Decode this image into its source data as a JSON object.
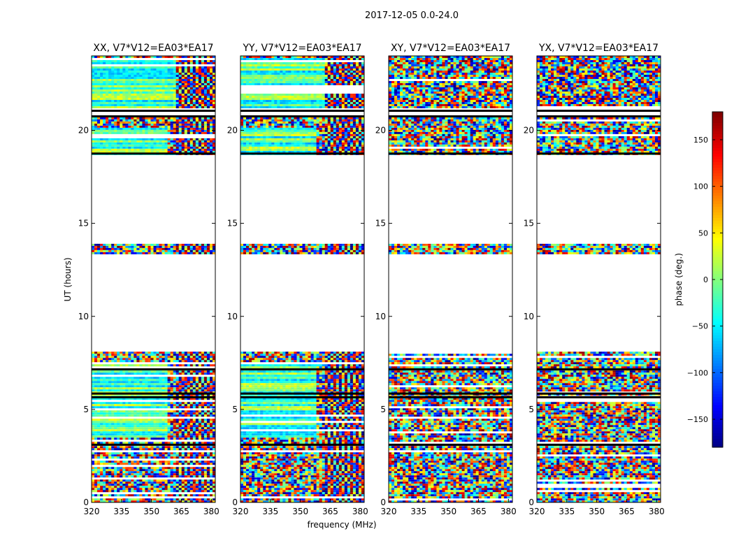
{
  "figure": {
    "suptitle": "2017-12-05 0.0-24.0",
    "xlabel": "frequency (MHz)",
    "ylabel": "UT (hours)",
    "colorbar_label": "phase (deg.)"
  },
  "chart_data": {
    "type": "heatmap",
    "title": "2017-12-05 0.0-24.0",
    "xlabel": "frequency (MHz)",
    "ylabel": "UT (hours)",
    "xlim": [
      320,
      382
    ],
    "ylim": [
      0,
      24
    ],
    "x_ticks": [
      320,
      335,
      350,
      365,
      380
    ],
    "y_ticks": [
      0,
      5,
      10,
      15,
      20
    ],
    "colorbar": {
      "label": "phase (deg.)",
      "range": [
        -180,
        180
      ],
      "ticks": [
        -150,
        -100,
        -50,
        0,
        50,
        100,
        150
      ],
      "colormap": "jet"
    },
    "panels": [
      {
        "title": "XX, V7*V12=EA03*EA17",
        "correlation": "XX"
      },
      {
        "title": "YY, V7*V12=EA03*EA17",
        "correlation": "YY"
      },
      {
        "title": "XY, V7*V12=EA03*EA17",
        "correlation": "XY"
      },
      {
        "title": "YX, V7*V12=EA03*EA17",
        "correlation": "YX"
      }
    ],
    "data_segments_ut": [
      [
        0,
        8.1
      ],
      [
        13.4,
        13.9
      ],
      [
        18.7,
        20.7
      ],
      [
        21.2,
        24
      ]
    ]
  }
}
